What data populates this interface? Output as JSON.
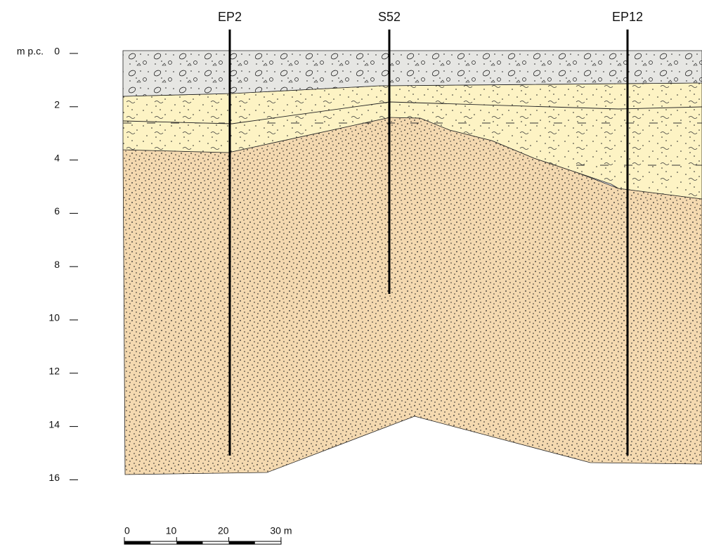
{
  "boreholes": [
    {
      "label": "EP2"
    },
    {
      "label": "S52"
    },
    {
      "label": "EP12"
    }
  ],
  "depth_axis": {
    "unit": "m p.c.",
    "ticks": [
      0,
      2,
      4,
      6,
      8,
      10,
      12,
      14,
      16
    ]
  },
  "scale_bar": {
    "ticks": [
      0,
      10,
      20,
      30
    ],
    "unit": "m"
  }
}
